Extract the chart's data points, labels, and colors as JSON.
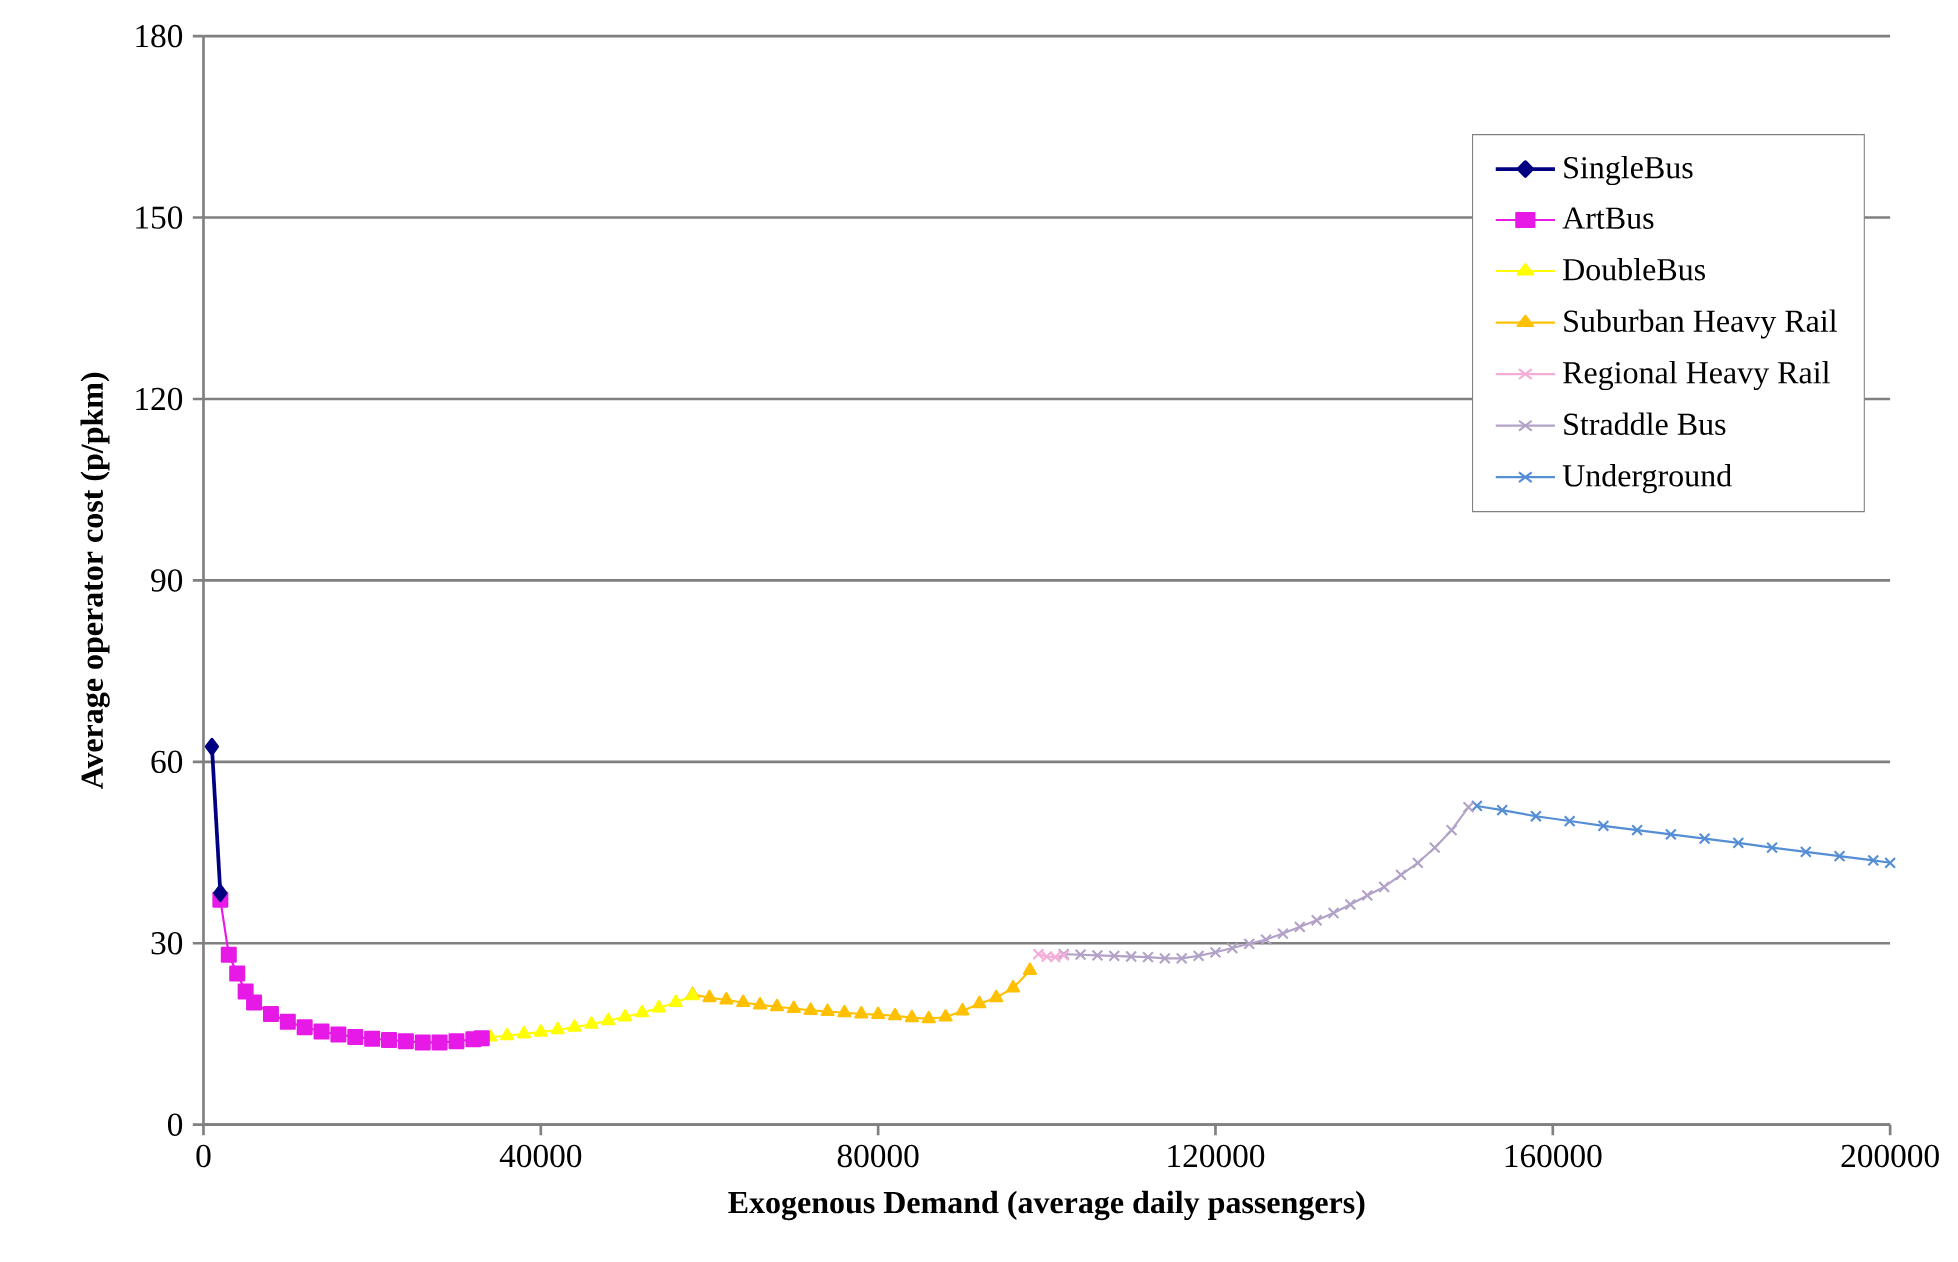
{
  "chart_data": {
    "type": "line",
    "xlabel": "Exogenous Demand (average daily passengers)",
    "ylabel": "Average operator cost (p/pkm)",
    "xlim": [
      0,
      200000
    ],
    "ylim": [
      0,
      180
    ],
    "xticks": [
      0,
      40000,
      80000,
      120000,
      160000,
      200000
    ],
    "yticks": [
      0,
      30,
      60,
      90,
      120,
      150,
      180
    ],
    "grid": "y",
    "legend": "top right",
    "series": [
      {
        "name": "SingleBus",
        "color": "#000080",
        "marker": "diamond",
        "x": [
          1000,
          2000
        ],
        "values": [
          62.5,
          38.3
        ]
      },
      {
        "name": "ArtBus",
        "color": "#e619e6",
        "marker": "square",
        "x": [
          2000,
          3000,
          4000,
          5000,
          6000,
          8000,
          10000,
          12000,
          14000,
          16000,
          18000,
          20000,
          22000,
          24000,
          26000,
          28000,
          30000,
          32000,
          33000
        ],
        "values": [
          37.2,
          28.1,
          25,
          22,
          20.2,
          18.3,
          17,
          16.1,
          15.4,
          14.9,
          14.5,
          14.2,
          14,
          13.8,
          13.6,
          13.6,
          13.8,
          14.1,
          14.3
        ]
      },
      {
        "name": "DoubleBus",
        "color": "#ffff00",
        "marker": "triangle",
        "x": [
          34000,
          36000,
          38000,
          40000,
          42000,
          44000,
          46000,
          48000,
          50000,
          52000,
          54000,
          56000,
          58000
        ],
        "values": [
          14.5,
          14.7,
          15,
          15.3,
          15.7,
          16.1,
          16.6,
          17.2,
          17.8,
          18.5,
          19.3,
          20.2,
          21.3
        ]
      },
      {
        "name": "Suburban Heavy Rail",
        "color": "#ffc000",
        "marker": "triangle",
        "x": [
          58000,
          60000,
          62000,
          64000,
          66000,
          68000,
          70000,
          72000,
          74000,
          76000,
          78000,
          80000,
          82000,
          84000,
          86000,
          88000,
          90000,
          92000,
          94000,
          96000,
          98000
        ],
        "values": [
          21.5,
          21,
          20.6,
          20.2,
          19.8,
          19.5,
          19.2,
          18.9,
          18.7,
          18.5,
          18.3,
          18.2,
          18,
          17.7,
          17.5,
          17.8,
          18.8,
          20,
          21,
          22.6,
          25.5
        ]
      },
      {
        "name": "Regional Heavy Rail",
        "color": "#f4acd8",
        "marker": "cross",
        "x": [
          99000,
          100000,
          101000,
          102000
        ],
        "values": [
          28.2,
          27.8,
          27.7,
          28
        ]
      },
      {
        "name": "Straddle Bus",
        "color": "#b3a2c7",
        "marker": "cross",
        "x": [
          102000,
          104000,
          106000,
          108000,
          110000,
          112000,
          114000,
          116000,
          118000,
          120000,
          122000,
          124000,
          126000,
          128000,
          130000,
          132000,
          134000,
          136000,
          138000,
          140000,
          142000,
          144000,
          146000,
          148000,
          150000
        ],
        "values": [
          28.2,
          28.1,
          28,
          27.9,
          27.8,
          27.7,
          27.5,
          27.5,
          27.9,
          28.5,
          29.2,
          29.9,
          30.6,
          31.6,
          32.7,
          33.8,
          35,
          36.4,
          37.9,
          39.3,
          41.3,
          43.3,
          45.8,
          48.7,
          52.5
        ]
      },
      {
        "name": "Underground",
        "color": "#558ed5",
        "marker": "cross",
        "x": [
          151000,
          154000,
          158000,
          162000,
          166000,
          170000,
          174000,
          178000,
          182000,
          186000,
          190000,
          194000,
          198000,
          200000
        ],
        "values": [
          52.7,
          52,
          51,
          50.2,
          49.4,
          48.7,
          48,
          47.3,
          46.6,
          45.8,
          45.1,
          44.4,
          43.7,
          43.3
        ]
      }
    ]
  }
}
